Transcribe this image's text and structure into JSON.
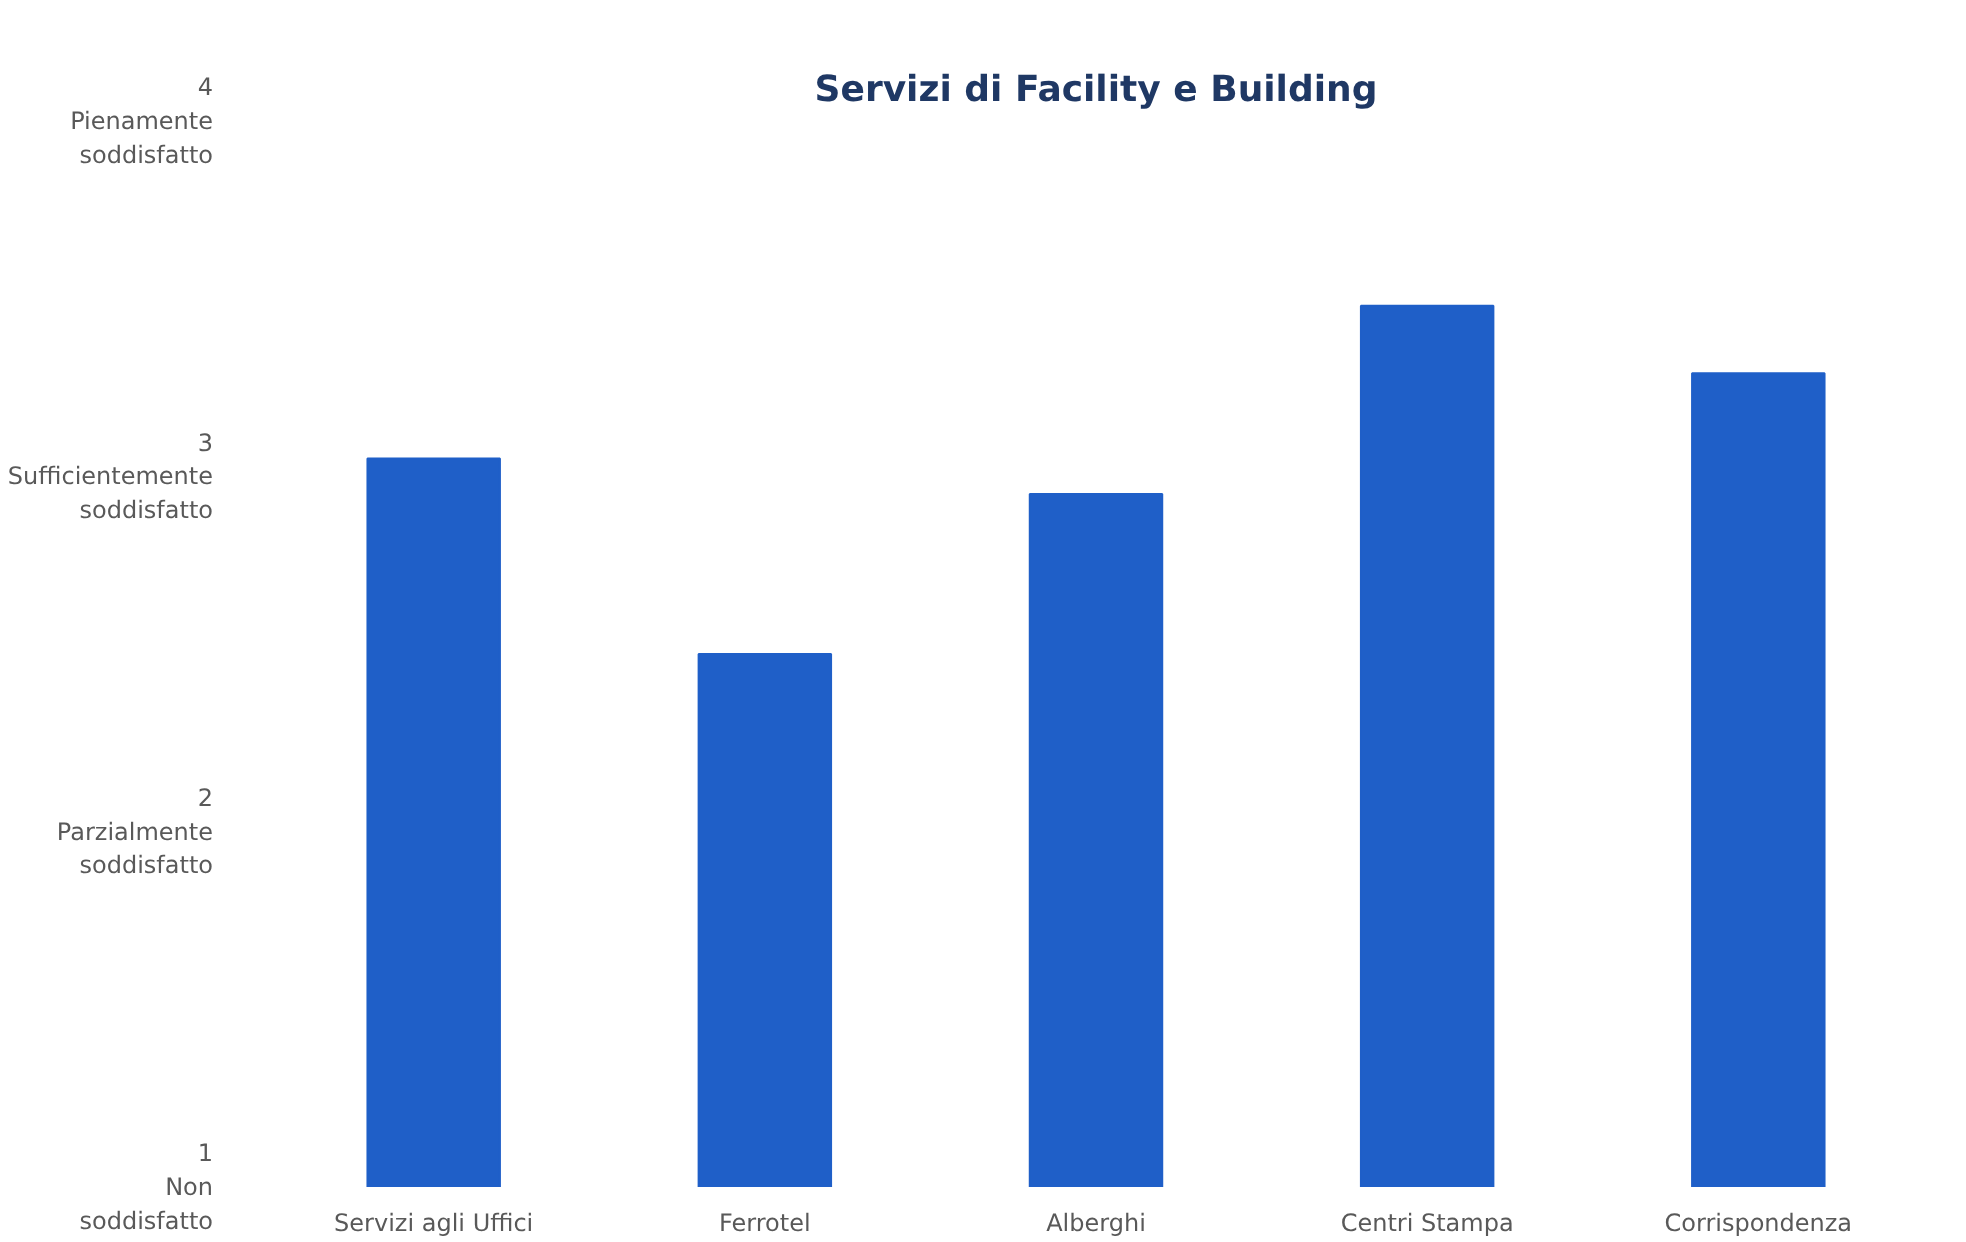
{
  "chart_data": {
    "type": "bar",
    "title": "Servizi di Facility e Building",
    "categories": [
      "Servizi agli Uffici",
      "Ferrotel",
      "Alberghi",
      "Centri Stampa",
      "Corrispondenza"
    ],
    "values": [
      3.05,
      2.5,
      2.95,
      3.48,
      3.29
    ],
    "color": "#1f5fc8",
    "ylim": [
      1,
      4
    ],
    "yticks": [
      {
        "value": 1,
        "label": "1\nNon\nsoddisfatto"
      },
      {
        "value": 2,
        "label": "2\nParzialmente\nsoddisfatto"
      },
      {
        "value": 3,
        "label": "3\nSufficientemente\nsoddisfatto"
      },
      {
        "value": 4,
        "label": "4\nPienamente\nsoddisfatto"
      }
    ],
    "grid": false
  }
}
